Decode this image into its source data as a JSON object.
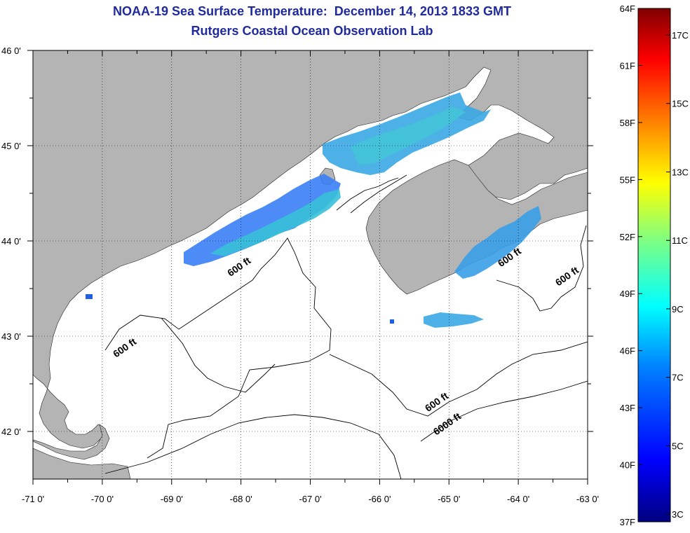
{
  "header": {
    "title_line1": "NOAA-19 Sea Surface Temperature:  December 14, 2013 1833 GMT",
    "title_line2": "Rutgers Coastal Ocean Observation Lab"
  },
  "map": {
    "lon_ticks": [
      {
        "value": -71,
        "label": "-71 0'"
      },
      {
        "value": -70,
        "label": "-70 0'"
      },
      {
        "value": -69,
        "label": "-69 0'"
      },
      {
        "value": -68,
        "label": "-68 0'"
      },
      {
        "value": -67,
        "label": "-67 0'"
      },
      {
        "value": -66,
        "label": "-66 0'"
      },
      {
        "value": -65,
        "label": "-65 0'"
      },
      {
        "value": -64,
        "label": "-64 0'"
      },
      {
        "value": -63,
        "label": "-63 0'"
      }
    ],
    "lat_ticks": [
      {
        "value": 46,
        "label": "46 0'"
      },
      {
        "value": 45,
        "label": "45 0'"
      },
      {
        "value": 44,
        "label": "44 0'"
      },
      {
        "value": 43,
        "label": "43 0'"
      },
      {
        "value": 42,
        "label": "42 0'"
      }
    ],
    "lon_range": [
      -71,
      -63
    ],
    "lat_range": [
      41.5,
      46
    ],
    "land_color": "#b4b4b4",
    "water_color": "#ffffff",
    "gridlines": "dotted",
    "contour_labels": [
      {
        "text": "600 ft",
        "lon": -68.0,
        "lat": 43.7
      },
      {
        "text": "600 ft",
        "lon": -69.65,
        "lat": 42.85
      },
      {
        "text": "600 ft",
        "lon": -64.1,
        "lat": 43.8
      },
      {
        "text": "600 ft",
        "lon": -63.27,
        "lat": 43.6
      },
      {
        "text": "600 ft",
        "lon": -65.15,
        "lat": 42.28
      },
      {
        "text": "6000 ft",
        "lon": -65.0,
        "lat": 42.05
      }
    ]
  },
  "colorbar": {
    "fahrenheit": [
      "64F",
      "61F",
      "58F",
      "55F",
      "52F",
      "49F",
      "46F",
      "43F",
      "40F",
      "37F"
    ],
    "celsius": [
      "17C",
      "15C",
      "13C",
      "11C",
      "9C",
      "7C",
      "5C",
      "3C"
    ],
    "colors": [
      "#00007f",
      "#0000ff",
      "#0080ff",
      "#00ffff",
      "#80ff80",
      "#ffff00",
      "#ff8000",
      "#ff0000",
      "#7f0000"
    ]
  }
}
